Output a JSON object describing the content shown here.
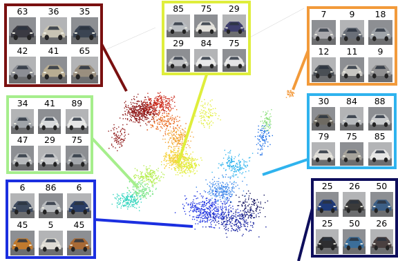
{
  "panels": [
    {
      "id": "dark-red",
      "color": "#7a1010",
      "counts": [
        63,
        36,
        35,
        42,
        41,
        65
      ]
    },
    {
      "id": "yellow",
      "color": "#dfee3c",
      "counts": [
        85,
        75,
        29,
        29,
        84,
        75
      ]
    },
    {
      "id": "orange",
      "color": "#f29a3a",
      "counts": [
        7,
        9,
        18,
        12,
        11,
        9
      ]
    },
    {
      "id": "light-green",
      "color": "#a6ee8c",
      "counts": [
        34,
        41,
        89,
        47,
        29,
        75
      ]
    },
    {
      "id": "cyan",
      "color": "#2fb3ee",
      "counts": [
        30,
        84,
        88,
        79,
        75,
        85
      ]
    },
    {
      "id": "blue",
      "color": "#1b2fe0",
      "counts": [
        6,
        86,
        6,
        45,
        5,
        45
      ]
    },
    {
      "id": "navy",
      "color": "#0e0e5c",
      "counts": [
        25,
        26,
        50,
        25,
        50,
        26
      ]
    }
  ],
  "thumbnail_tints": {
    "dark-red": [
      "#3a3a42",
      "#c9c4b4",
      "#3b4452",
      "#8c8e94",
      "#b9ad92",
      "#9a8f7f"
    ],
    "yellow": [
      "#b8bcc0",
      "#e3e1dc",
      "#3f3f6e",
      "#c3c4c6",
      "#e9e9ea",
      "#e4e4e6"
    ],
    "orange": [
      "#a9a9ad",
      "#6a6f78",
      "#9ea3a8",
      "#4a4f55",
      "#c7c6c2",
      "#8f8f90"
    ],
    "light-green": [
      "#9fa3a8",
      "#d8dadc",
      "#e6e6e6",
      "#b7b9bb",
      "#c7c8ca",
      "#a4a7ab"
    ],
    "cyan": [
      "#6e6a62",
      "#b8bbbe",
      "#c9cbcd",
      "#dcdad5",
      "#a6a39b",
      "#e6e6e6"
    ],
    "blue": [
      "#3e4a5e",
      "#b9bcbf",
      "#2a3e66",
      "#c07a2e",
      "#dedbd4",
      "#a86a36"
    ],
    "navy": [
      "#1f3a78",
      "#3b3b3b",
      "#3c5f86",
      "#2e2e30",
      "#3b6e9a",
      "#4a4040"
    ]
  }
}
